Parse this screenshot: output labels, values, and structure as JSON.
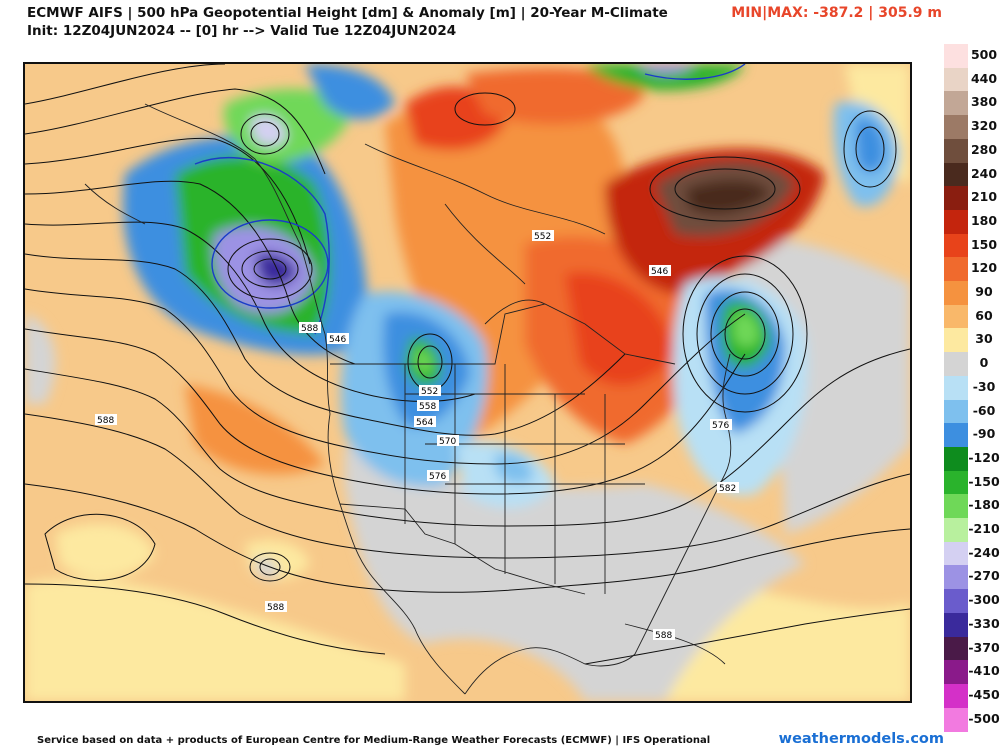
{
  "header": {
    "title_line1": "ECMWF AIFS | 500 hPa Geopotential Height [dm] & Anomaly [m] | 20-Year M-Climate",
    "title_line2": "Init: 12Z04JUN2024 -- [0] hr --> Valid Tue 12Z04JUN2024",
    "minmax": "MIN|MAX: -387.2 | 305.9 m"
  },
  "legend": {
    "levels": [
      {
        "label": "500",
        "color": "#fde0e0"
      },
      {
        "label": "440",
        "color": "#e9d4c6"
      },
      {
        "label": "380",
        "color": "#c2a796"
      },
      {
        "label": "320",
        "color": "#9c7a66"
      },
      {
        "label": "280",
        "color": "#6f4e3d"
      },
      {
        "label": "240",
        "color": "#4a2a1e"
      },
      {
        "label": "210",
        "color": "#8a1e10"
      },
      {
        "label": "180",
        "color": "#c4250d"
      },
      {
        "label": "150",
        "color": "#e8431a"
      },
      {
        "label": "120",
        "color": "#f06a2d"
      },
      {
        "label": "90",
        "color": "#f5923f"
      },
      {
        "label": "60",
        "color": "#f9b86a"
      },
      {
        "label": "30",
        "color": "#fde9a0"
      },
      {
        "label": "0",
        "color": "#d4d4d4"
      },
      {
        "label": "-30",
        "color": "#b8e0f5"
      },
      {
        "label": "-60",
        "color": "#7ec0ee"
      },
      {
        "label": "-90",
        "color": "#3d8fe0"
      },
      {
        "label": "-120",
        "color": "#0e8c1e"
      },
      {
        "label": "-150",
        "color": "#2ab32c"
      },
      {
        "label": "-180",
        "color": "#6fd858"
      },
      {
        "label": "-210",
        "color": "#b8f09e"
      },
      {
        "label": "-240",
        "color": "#d4d0f2"
      },
      {
        "label": "-270",
        "color": "#9c92e4"
      },
      {
        "label": "-300",
        "color": "#6a5ccc"
      },
      {
        "label": "-330",
        "color": "#3a2a9c"
      },
      {
        "label": "-370",
        "color": "#4a1a48"
      },
      {
        "label": "-410",
        "color": "#8a1a8a"
      },
      {
        "label": "-450",
        "color": "#d430c8"
      },
      {
        "label": "-500",
        "color": "#f27ae0"
      }
    ]
  },
  "map": {
    "contour_labels": [
      "588",
      "588",
      "588",
      "588",
      "546",
      "552",
      "558",
      "564",
      "570",
      "576",
      "552",
      "546",
      "576",
      "582"
    ]
  },
  "footer": {
    "credit": "Service based on data + products of European Centre for Medium-Range Weather Forecasts (ECMWF) | IFS Operational",
    "brand": "weathermodels.com"
  }
}
